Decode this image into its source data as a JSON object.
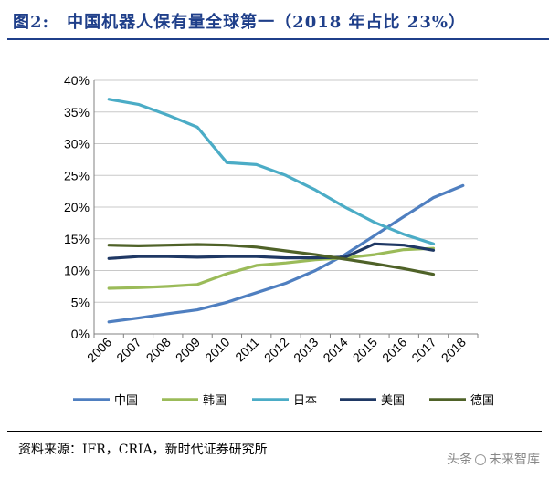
{
  "title": "图2:　中国机器人保有量全球第一（2018 年占比 23%）",
  "source": "资料来源：IFR，CRIA，新时代证券研究所",
  "watermark": {
    "prefix": "头条",
    "suffix": "未来智库"
  },
  "chart_data": {
    "type": "line",
    "title": "中国机器人保有量全球第一（2018 年占比 23%）",
    "xlabel": "",
    "ylabel": "",
    "ylim": [
      0,
      40
    ],
    "yticks": [
      0,
      5,
      10,
      15,
      20,
      25,
      30,
      35,
      40
    ],
    "ytick_labels": [
      "0%",
      "5%",
      "10%",
      "15%",
      "20%",
      "25%",
      "30%",
      "35%",
      "40%"
    ],
    "grid": true,
    "legend_position": "bottom",
    "categories": [
      "2006",
      "2007",
      "2008",
      "2009",
      "2010",
      "2011",
      "2012",
      "2013",
      "2014",
      "2015",
      "2016",
      "2017",
      "2018"
    ],
    "series": [
      {
        "name": "中国",
        "color": "#4f7fc0",
        "values": [
          1.9,
          2.5,
          3.2,
          3.8,
          5.0,
          6.5,
          8.0,
          10.0,
          12.5,
          15.5,
          18.5,
          21.5,
          23.4
        ]
      },
      {
        "name": "韩国",
        "color": "#9bbb59",
        "values": [
          7.2,
          7.3,
          7.5,
          7.8,
          9.5,
          10.8,
          11.2,
          11.7,
          12.0,
          12.5,
          13.3,
          13.5,
          null
        ]
      },
      {
        "name": "日本",
        "color": "#4bacc6",
        "values": [
          37.0,
          36.2,
          34.5,
          32.6,
          27.0,
          26.7,
          25.0,
          22.7,
          20.0,
          17.6,
          15.7,
          14.2,
          null
        ]
      },
      {
        "name": "美国",
        "color": "#1f3864",
        "values": [
          11.9,
          12.2,
          12.2,
          12.1,
          12.2,
          12.2,
          12.0,
          12.0,
          12.1,
          14.2,
          14.0,
          13.2,
          null
        ]
      },
      {
        "name": "德国",
        "color": "#4f6228",
        "values": [
          14.0,
          13.9,
          14.0,
          14.1,
          14.0,
          13.7,
          13.1,
          12.5,
          11.8,
          11.1,
          10.3,
          9.4,
          null
        ]
      }
    ]
  }
}
